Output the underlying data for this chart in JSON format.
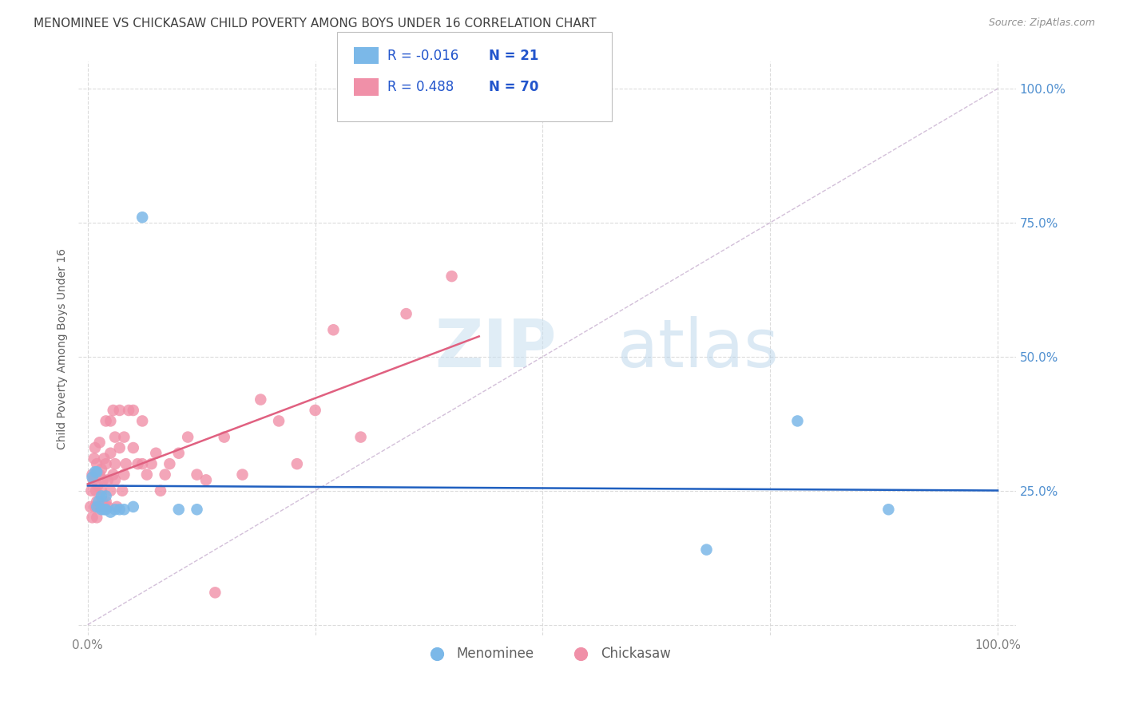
{
  "title": "MENOMINEE VS CHICKASAW CHILD POVERTY AMONG BOYS UNDER 16 CORRELATION CHART",
  "source": "Source: ZipAtlas.com",
  "ylabel": "Child Poverty Among Boys Under 16",
  "watermark_zip": "ZIP",
  "watermark_atlas": "atlas",
  "legend_entries": [
    {
      "label": "Menominee",
      "color": "#a8c8e8",
      "R": "-0.016",
      "N": "21"
    },
    {
      "label": "Chickasaw",
      "color": "#f0a0b8",
      "R": "0.488",
      "N": "70"
    }
  ],
  "menominee_x": [
    0.005,
    0.008,
    0.01,
    0.01,
    0.012,
    0.015,
    0.015,
    0.018,
    0.02,
    0.02,
    0.025,
    0.03,
    0.035,
    0.04,
    0.05,
    0.06,
    0.1,
    0.12,
    0.68,
    0.78,
    0.88
  ],
  "menominee_y": [
    0.275,
    0.285,
    0.285,
    0.22,
    0.23,
    0.24,
    0.215,
    0.215,
    0.215,
    0.24,
    0.21,
    0.215,
    0.215,
    0.215,
    0.22,
    0.76,
    0.215,
    0.215,
    0.14,
    0.38,
    0.215
  ],
  "chickasaw_x": [
    0.003,
    0.004,
    0.005,
    0.005,
    0.006,
    0.007,
    0.008,
    0.008,
    0.009,
    0.01,
    0.01,
    0.01,
    0.011,
    0.012,
    0.013,
    0.013,
    0.014,
    0.015,
    0.015,
    0.016,
    0.017,
    0.018,
    0.018,
    0.02,
    0.02,
    0.02,
    0.022,
    0.022,
    0.025,
    0.025,
    0.025,
    0.028,
    0.028,
    0.03,
    0.03,
    0.03,
    0.032,
    0.035,
    0.035,
    0.038,
    0.04,
    0.04,
    0.042,
    0.045,
    0.05,
    0.05,
    0.055,
    0.06,
    0.06,
    0.065,
    0.07,
    0.075,
    0.08,
    0.085,
    0.09,
    0.1,
    0.11,
    0.12,
    0.13,
    0.14,
    0.15,
    0.17,
    0.19,
    0.21,
    0.23,
    0.25,
    0.27,
    0.3,
    0.35,
    0.4
  ],
  "chickasaw_y": [
    0.22,
    0.25,
    0.2,
    0.28,
    0.27,
    0.31,
    0.22,
    0.33,
    0.25,
    0.2,
    0.23,
    0.3,
    0.26,
    0.22,
    0.28,
    0.34,
    0.22,
    0.25,
    0.29,
    0.23,
    0.27,
    0.31,
    0.22,
    0.3,
    0.23,
    0.38,
    0.27,
    0.22,
    0.25,
    0.32,
    0.38,
    0.28,
    0.4,
    0.27,
    0.3,
    0.35,
    0.22,
    0.33,
    0.4,
    0.25,
    0.28,
    0.35,
    0.3,
    0.4,
    0.33,
    0.4,
    0.3,
    0.3,
    0.38,
    0.28,
    0.3,
    0.32,
    0.25,
    0.28,
    0.3,
    0.32,
    0.35,
    0.28,
    0.27,
    0.06,
    0.35,
    0.28,
    0.42,
    0.38,
    0.3,
    0.4,
    0.55,
    0.35,
    0.58,
    0.65
  ],
  "menominee_color": "#7BB8E8",
  "chickasaw_color": "#F090A8",
  "menominee_trend_color": "#2060C0",
  "chickasaw_trend_color": "#E06080",
  "diag_color": "#C8B0D0",
  "bg_color": "#ffffff",
  "plot_bg_color": "#ffffff",
  "grid_color": "#d8d8d8",
  "title_color": "#404040",
  "right_axis_color": "#5090d0",
  "xlim": [
    -0.01,
    1.02
  ],
  "ylim": [
    -0.02,
    1.05
  ],
  "menominee_trend_R": -0.016,
  "chickasaw_trend_R": 0.488
}
